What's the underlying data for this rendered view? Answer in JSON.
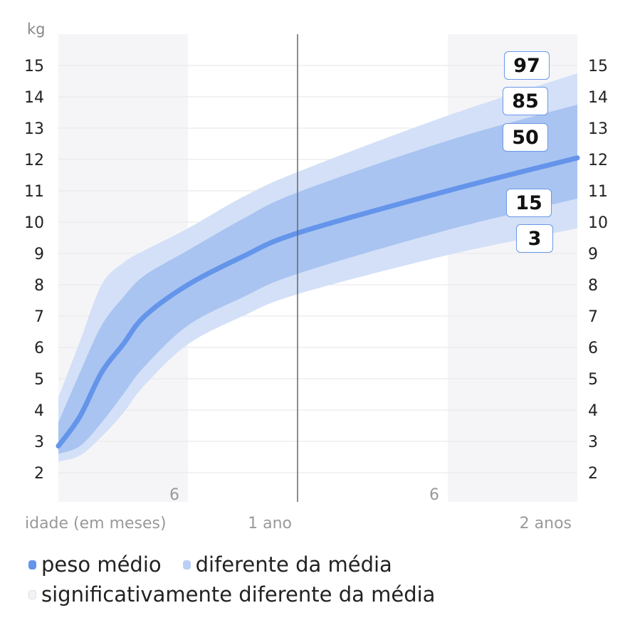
{
  "chart_data": {
    "type": "area",
    "ylabel": "kg",
    "ylim": [
      1,
      16
    ],
    "yticks": [
      2,
      3,
      4,
      5,
      6,
      7,
      8,
      9,
      10,
      11,
      12,
      13,
      14,
      15
    ],
    "xlabel": "idade (em meses)",
    "xlim_months": [
      0,
      24
    ],
    "xtick_labels": [
      {
        "month": 6,
        "label": "6"
      },
      {
        "month": 12,
        "label": "1 ano"
      },
      {
        "month": 18,
        "label": "6"
      },
      {
        "month": 24,
        "label": "2 anos"
      }
    ],
    "grid": true,
    "shaded_periods_months": [
      [
        0,
        6
      ],
      [
        18,
        24
      ]
    ],
    "marker_line_month": 12,
    "x_months": [
      0,
      1,
      2,
      3,
      4,
      6,
      9,
      12,
      18,
      24
    ],
    "series": [
      {
        "percentile": "97",
        "values": [
          4.4,
          6.2,
          8.0,
          8.7,
          9.1,
          9.8,
          10.8,
          11.6,
          13.4,
          14.75
        ]
      },
      {
        "percentile": "85",
        "values": [
          3.6,
          5.2,
          6.7,
          7.6,
          8.3,
          9.1,
          10.1,
          10.95,
          12.6,
          13.75
        ]
      },
      {
        "percentile": "50",
        "values": [
          2.85,
          3.8,
          5.2,
          6.1,
          7.0,
          8.0,
          8.9,
          9.65,
          11.0,
          12.05
        ]
      },
      {
        "percentile": "15",
        "values": [
          2.6,
          2.85,
          3.6,
          4.5,
          5.4,
          6.7,
          7.6,
          8.35,
          9.75,
          10.75
        ]
      },
      {
        "percentile": "3",
        "values": [
          2.35,
          2.55,
          3.15,
          3.9,
          4.8,
          6.1,
          7.0,
          7.7,
          8.95,
          9.8
        ]
      }
    ],
    "percentile_labels": [
      "97",
      "85",
      "50",
      "15",
      "3"
    ],
    "legend": [
      {
        "label": "peso médio",
        "color": "#6495ea"
      },
      {
        "label": "diferente da média",
        "color": "#b9cff5"
      },
      {
        "label": "significativamente diferente da média",
        "color": "#f2f3f6"
      }
    ],
    "legend_position": "bottom-left",
    "colors": {
      "median": "#6495ea",
      "inner_band": "#a9c4f1",
      "outer_band": "#d3e0f7",
      "shade": "#f5f5f8",
      "marker_line": "#666666"
    }
  }
}
